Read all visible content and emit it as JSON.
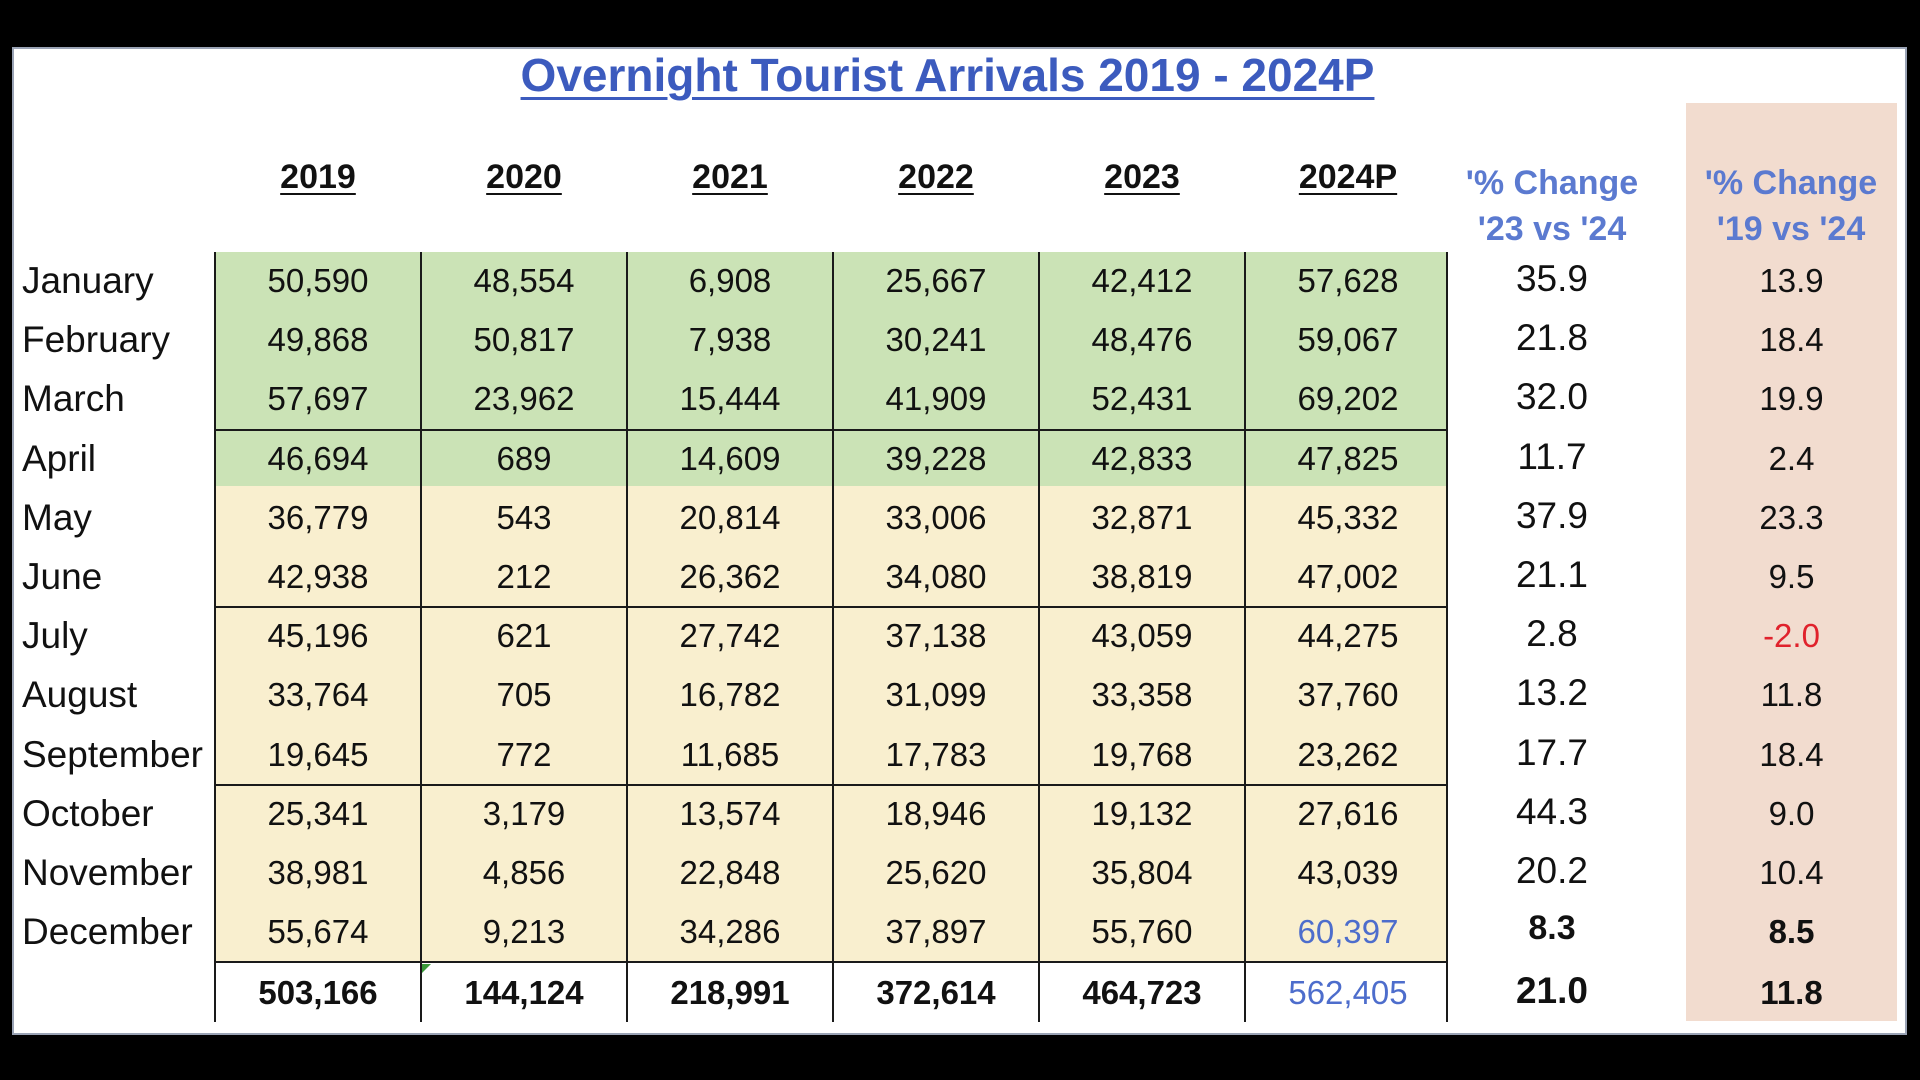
{
  "chart_data": {
    "type": "table",
    "title": "Overnight Tourist Arrivals 2019 - 2024P",
    "columns": [
      "2019",
      "2020",
      "2021",
      "2022",
      "2023",
      "2024P",
      "'% Change '23 vs '24",
      "'% Change '19 vs '24"
    ],
    "pct_headers": [
      {
        "line1": "'% Change",
        "line2": "'23 vs '24"
      },
      {
        "line1": "'% Change",
        "line2": "'19 vs '24"
      }
    ],
    "rows": [
      {
        "month": "January",
        "values": [
          "50,590",
          "48,554",
          "6,908",
          "25,667",
          "42,412",
          "57,628"
        ],
        "pct_23_24": "35.9",
        "pct_19_24": "13.9"
      },
      {
        "month": "February",
        "values": [
          "49,868",
          "50,817",
          "7,938",
          "30,241",
          "48,476",
          "59,067"
        ],
        "pct_23_24": "21.8",
        "pct_19_24": "18.4"
      },
      {
        "month": "March",
        "values": [
          "57,697",
          "23,962",
          "15,444",
          "41,909",
          "52,431",
          "69,202"
        ],
        "pct_23_24": "32.0",
        "pct_19_24": "19.9"
      },
      {
        "month": "April",
        "values": [
          "46,694",
          "689",
          "14,609",
          "39,228",
          "42,833",
          "47,825"
        ],
        "pct_23_24": "11.7",
        "pct_19_24": "2.4"
      },
      {
        "month": "May",
        "values": [
          "36,779",
          "543",
          "20,814",
          "33,006",
          "32,871",
          "45,332"
        ],
        "pct_23_24": "37.9",
        "pct_19_24": "23.3"
      },
      {
        "month": "June",
        "values": [
          "42,938",
          "212",
          "26,362",
          "34,080",
          "38,819",
          "47,002"
        ],
        "pct_23_24": "21.1",
        "pct_19_24": "9.5"
      },
      {
        "month": "July",
        "values": [
          "45,196",
          "621",
          "27,742",
          "37,138",
          "43,059",
          "44,275"
        ],
        "pct_23_24": "2.8",
        "pct_19_24": "-2.0"
      },
      {
        "month": "August",
        "values": [
          "33,764",
          "705",
          "16,782",
          "31,099",
          "33,358",
          "37,760"
        ],
        "pct_23_24": "13.2",
        "pct_19_24": "11.8"
      },
      {
        "month": "September",
        "values": [
          "19,645",
          "772",
          "11,685",
          "17,783",
          "19,768",
          "23,262"
        ],
        "pct_23_24": "17.7",
        "pct_19_24": "18.4"
      },
      {
        "month": "October",
        "values": [
          "25,341",
          "3,179",
          "13,574",
          "18,946",
          "19,132",
          "27,616"
        ],
        "pct_23_24": "44.3",
        "pct_19_24": "9.0"
      },
      {
        "month": "November",
        "values": [
          "38,981",
          "4,856",
          "22,848",
          "25,620",
          "35,804",
          "43,039"
        ],
        "pct_23_24": "20.2",
        "pct_19_24": "10.4"
      },
      {
        "month": "December",
        "values": [
          "55,674",
          "9,213",
          "34,286",
          "37,897",
          "55,760",
          "60,397"
        ],
        "pct_23_24": "8.3",
        "pct_19_24": "8.5"
      }
    ],
    "totals": {
      "values": [
        "503,166",
        "144,124",
        "218,991",
        "372,614",
        "464,723",
        "562,405"
      ],
      "pct_23_24": "21.0",
      "pct_19_24": "11.8"
    }
  },
  "colors": {
    "title": "#3c5bbe",
    "q1_fill": "#cbe3b6",
    "rest_fill": "#f9efcf",
    "pct_19_24_fill": "#f2dccf",
    "highlight_blue": "#4d6dcc",
    "negative_red": "#e0222c"
  }
}
